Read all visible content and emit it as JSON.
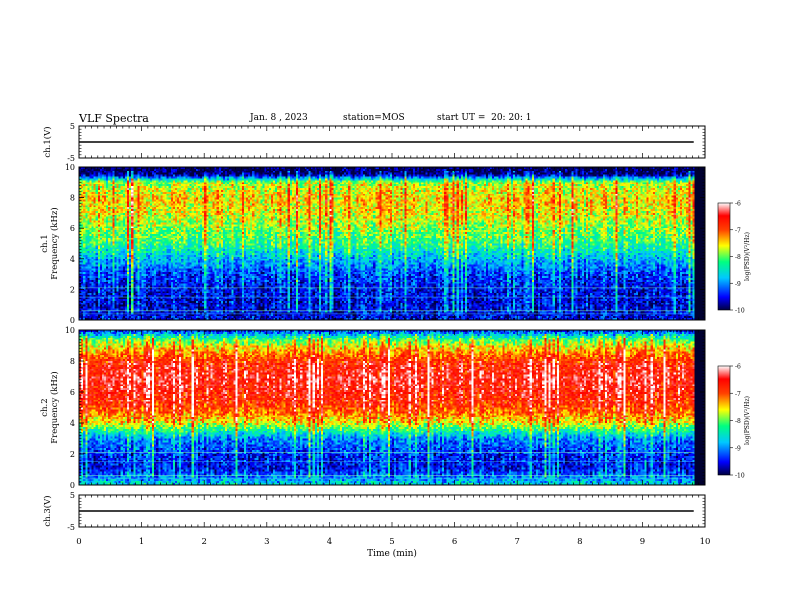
{
  "header": {
    "title": "VLF Spectra",
    "date": "Jan. 8 , 2023",
    "station": "station=MOS",
    "start": "start UT =  20: 20: 1"
  },
  "chart_data": [
    {
      "type": "line",
      "panel": "ch1-voltage",
      "ylabel": "ch.1(V)",
      "ylim": [
        -5,
        5
      ],
      "yticks": [
        "5",
        "-5"
      ],
      "x": [
        0,
        9.82
      ],
      "values": [
        0,
        0
      ]
    },
    {
      "type": "heatmap",
      "panel": "ch1-spectrogram",
      "ylabel": "ch.1\nFrequency (kHz)",
      "ylim": [
        0,
        10
      ],
      "yticks": [
        "0",
        "2",
        "4",
        "6",
        "8",
        "10"
      ],
      "xlim": [
        0,
        10
      ],
      "data_extent_min": 9.82,
      "colorbar": {
        "label": "log(PSD)(V²/Hz)",
        "range": [
          -10,
          -6
        ],
        "ticks": [
          "-6",
          "-7",
          "-8",
          "-9",
          "-10"
        ]
      },
      "profile_freq_khz": [
        0,
        1,
        2,
        3,
        4,
        5,
        6,
        7,
        8,
        9,
        9.5,
        10
      ],
      "profile_log_psd": [
        -9.5,
        -9.6,
        -9.5,
        -9.3,
        -8.8,
        -8.2,
        -7.9,
        -7.6,
        -7.5,
        -7.8,
        -9.9,
        -10
      ]
    },
    {
      "type": "heatmap",
      "panel": "ch2-spectrogram",
      "ylabel": "ch.2\nFrequency (kHz)",
      "ylim": [
        0,
        10
      ],
      "yticks": [
        "0",
        "2",
        "4",
        "6",
        "8",
        "10"
      ],
      "xlim": [
        0,
        10
      ],
      "data_extent_min": 9.82,
      "colorbar": {
        "label": "log(PSD)(V²/Hz)",
        "range": [
          -10,
          -6
        ],
        "ticks": [
          "-6",
          "-7",
          "-8",
          "-9",
          "-10"
        ]
      },
      "profile_freq_khz": [
        0,
        1,
        2,
        3,
        4,
        5,
        6,
        7,
        8,
        9,
        9.5,
        10
      ],
      "profile_log_psd": [
        -8.6,
        -9.5,
        -9.4,
        -9.0,
        -7.6,
        -6.9,
        -6.6,
        -6.5,
        -6.8,
        -7.6,
        -8.3,
        -9.4
      ]
    },
    {
      "type": "line",
      "panel": "ch3-voltage",
      "ylabel": "ch.3(V)",
      "ylim": [
        -5,
        5
      ],
      "yticks": [
        "5",
        "-5"
      ],
      "x": [
        0,
        9.82
      ],
      "values": [
        0,
        0
      ]
    }
  ],
  "xaxis": {
    "label": "Time (min)",
    "range": [
      0,
      10
    ],
    "ticks": [
      "0",
      "1",
      "2",
      "3",
      "4",
      "5",
      "6",
      "7",
      "8",
      "9",
      "10"
    ]
  },
  "colors": {
    "spectrogram_background": "#000030",
    "trace": "#000000"
  }
}
